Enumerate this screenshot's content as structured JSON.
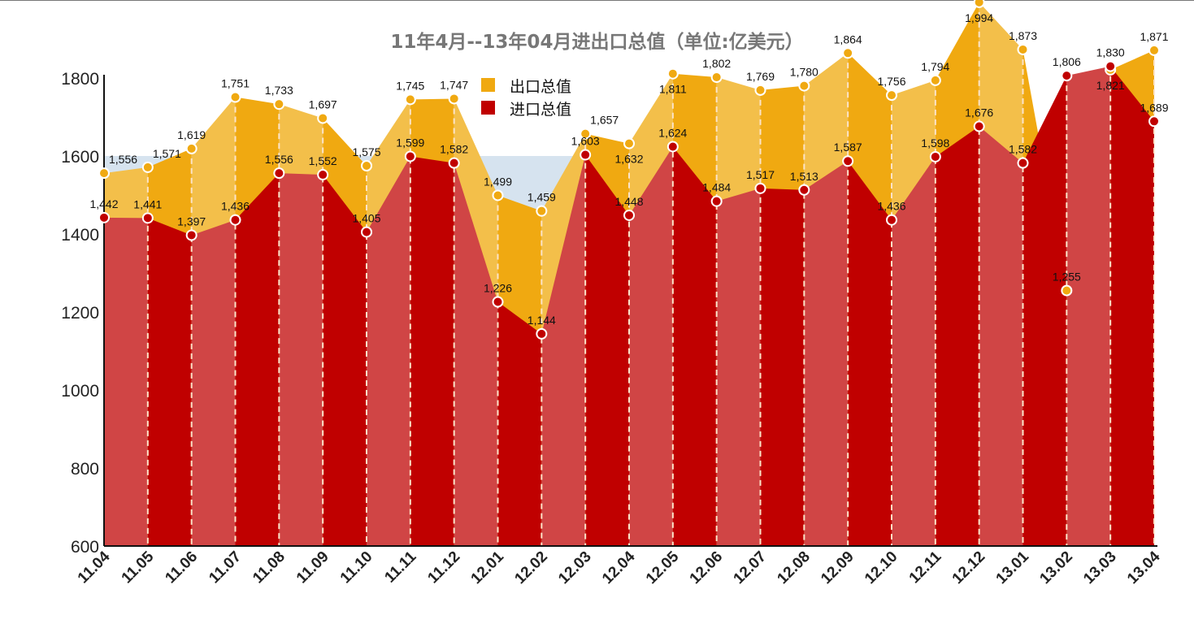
{
  "chart_data": {
    "type": "area",
    "title": "11年4月--13年04月进出口总值（单位:亿美元）",
    "categories": [
      "11.04",
      "11.05",
      "11.06",
      "11.07",
      "11.08",
      "11.09",
      "11.10",
      "11.11",
      "11.12",
      "12.01",
      "12.02",
      "12.03",
      "12.04",
      "12.05",
      "12.06",
      "12.07",
      "12.08",
      "12.09",
      "12.10",
      "12.11",
      "12.12",
      "13.01",
      "13.02",
      "13.03",
      "13.04"
    ],
    "series": [
      {
        "name": "出口总值",
        "color": "#f0a911",
        "values": [
          1556,
          1571,
          1619,
          1751,
          1733,
          1697,
          1575,
          1745,
          1747,
          1499,
          1459,
          1657,
          1632,
          1811,
          1802,
          1769,
          1780,
          1864,
          1756,
          1794,
          1994,
          1873,
          1255,
          1821,
          1871
        ]
      },
      {
        "name": "进口总值",
        "color": "#c00000",
        "values": [
          1442,
          1441,
          1397,
          1436,
          1556,
          1552,
          1405,
          1599,
          1582,
          1226,
          1144,
          1603,
          1448,
          1624,
          1484,
          1517,
          1513,
          1587,
          1436,
          1598,
          1676,
          1582,
          1806,
          1830,
          1689
        ]
      }
    ],
    "ylim": [
      600,
      1800
    ],
    "yticks": [
      600,
      800,
      1000,
      1200,
      1400,
      1600,
      1800
    ],
    "legend": "top-center",
    "grid": false
  }
}
